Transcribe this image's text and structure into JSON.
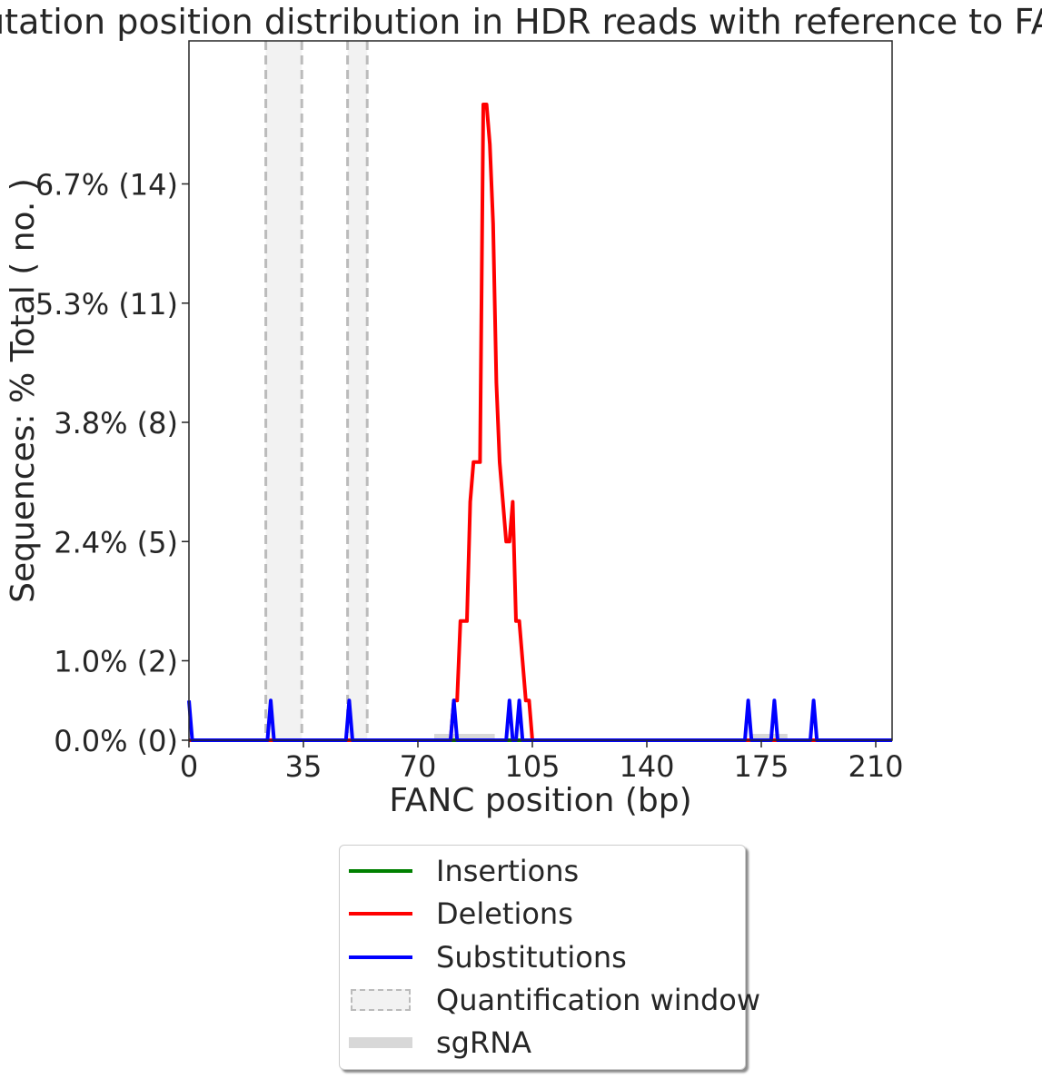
{
  "chart_data": {
    "type": "line",
    "title": "Mutation position distribution in HDR reads with reference to FANC",
    "xlabel": "FANC position (bp)",
    "ylabel": "Sequences: % Total ( no. )",
    "xlim": [
      0,
      215
    ],
    "ylim": [
      0,
      17.6
    ],
    "x_ticks": [
      0,
      35,
      70,
      105,
      140,
      175,
      210
    ],
    "x_tick_labels": [
      "0",
      "35",
      "70",
      "105",
      "140",
      "175",
      "210"
    ],
    "y_ticks": [
      0,
      2,
      5,
      8,
      11,
      14
    ],
    "y_tick_labels": [
      "0.0% (0)",
      "1.0% (2)",
      "2.4% (5)",
      "3.8% (8)",
      "5.3% (11)",
      "6.7% (14)"
    ],
    "quantification_windows": [
      [
        23.5,
        34.5
      ],
      [
        48.5,
        54.5
      ]
    ],
    "sgrna": [
      [
        75,
        93.5
      ],
      [
        172,
        183
      ]
    ],
    "series": [
      {
        "name": "Insertions",
        "color": "#008000",
        "x": [
          0,
          215
        ],
        "y": [
          0,
          0
        ]
      },
      {
        "name": "Deletions",
        "color": "#ff0000",
        "x": [
          0,
          80,
          81,
          82,
          83,
          84,
          85,
          86,
          87,
          88,
          89,
          90,
          91,
          92,
          93,
          94,
          95,
          96,
          97,
          98,
          99,
          100,
          101,
          102,
          103,
          104,
          105,
          106,
          215
        ],
        "y": [
          0,
          0,
          1,
          1,
          3,
          3,
          3,
          6,
          7,
          7,
          7,
          16,
          16,
          15,
          13,
          9,
          7,
          6,
          5,
          5,
          6,
          3,
          3,
          2,
          1,
          1,
          0,
          0,
          0
        ]
      },
      {
        "name": "Substitutions",
        "color": "#0000ff",
        "x": [
          0,
          1,
          24,
          25,
          26,
          48,
          49,
          50,
          80,
          81,
          82,
          97,
          98,
          99,
          100,
          101,
          102,
          170,
          171,
          172,
          178,
          179,
          180,
          190,
          191,
          192,
          215
        ],
        "y": [
          1,
          0,
          0,
          1,
          0,
          0,
          1,
          0,
          0,
          1,
          0,
          0,
          1,
          0,
          0,
          1,
          0,
          0,
          1,
          0,
          0,
          1,
          0,
          0,
          1,
          0,
          0
        ]
      }
    ],
    "legend": {
      "placement": "below",
      "entries": [
        "Insertions",
        "Deletions",
        "Substitutions",
        "Quantification window",
        "sgRNA"
      ]
    },
    "grid": false
  }
}
